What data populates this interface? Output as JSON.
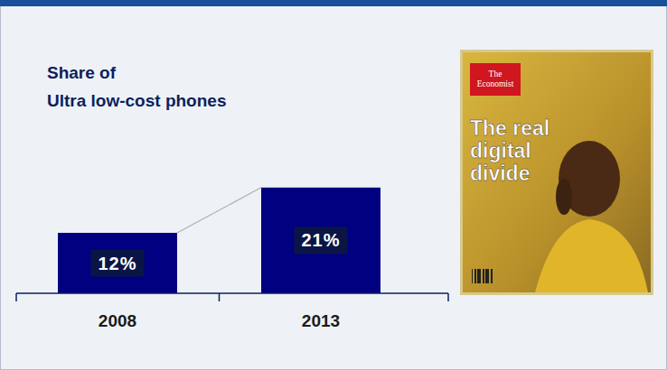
{
  "chart_data": {
    "type": "bar",
    "title": "Share of\nUltra low-cost phones",
    "categories": [
      "2008",
      "2013"
    ],
    "values": [
      12,
      21
    ],
    "value_labels": [
      "12%",
      "21%"
    ],
    "color": "#000080",
    "ylim": [
      0,
      25
    ],
    "data_labels": true,
    "tick_labels": "x"
  },
  "cover": {
    "masthead": "The Economist",
    "headline_lines": [
      "The real",
      "digital",
      "divide"
    ]
  }
}
